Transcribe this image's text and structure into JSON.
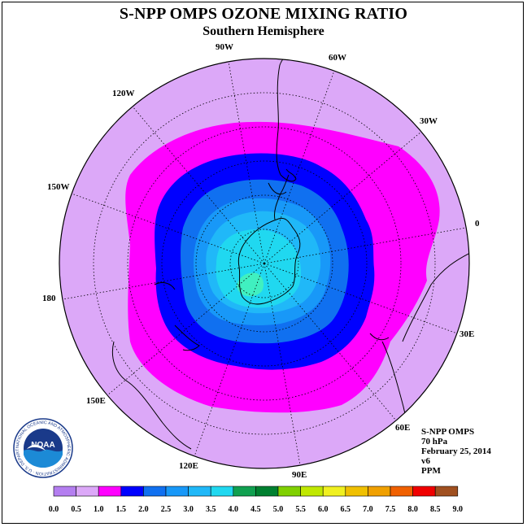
{
  "title": "S-NPP OMPS OZONE MIXING RATIO",
  "subtitle": "Southern Hemisphere",
  "longitude_labels": [
    "90W",
    "60W",
    "30W",
    "0",
    "30E",
    "60E",
    "90E",
    "120E",
    "150E",
    "180",
    "150W",
    "120W"
  ],
  "info": {
    "instrument": "S-NPP OMPS",
    "level": "70 hPa",
    "date": "February 25, 2014",
    "version": "v6",
    "units": "PPM"
  },
  "logo": {
    "text": "NOAA",
    "ring_text": "NATIONAL OCEANIC AND ATMOSPHERIC ADMINISTRATION · U.S. DEPARTMENT OF COMMERCE"
  },
  "colorbar": {
    "ticks": [
      "0.0",
      "0.5",
      "1.0",
      "1.5",
      "2.0",
      "2.5",
      "3.0",
      "3.5",
      "4.0",
      "4.5",
      "5.0",
      "5.5",
      "6.0",
      "6.5",
      "7.0",
      "7.5",
      "8.0",
      "8.5",
      "9.0"
    ],
    "colors": [
      "#b47ef0",
      "#dca8f8",
      "#ff00ff",
      "#0000ff",
      "#1070f0",
      "#1898f8",
      "#20b8f8",
      "#20d8f0",
      "#10a050",
      "#008030",
      "#80d000",
      "#c0e800",
      "#f0f020",
      "#f0c000",
      "#f0a000",
      "#f06000",
      "#f00000",
      "#a05020"
    ]
  },
  "map_colors": {
    "level_1.0": "#dca8f8",
    "level_1.5": "#ff00ff",
    "level_2.0": "#0000ff",
    "level_2.5": "#1070f0",
    "level_3.0": "#1898f8",
    "level_3.5": "#20b8f8",
    "level_4.0": "#20d8f0",
    "level_4.5": "#40f0c0"
  }
}
